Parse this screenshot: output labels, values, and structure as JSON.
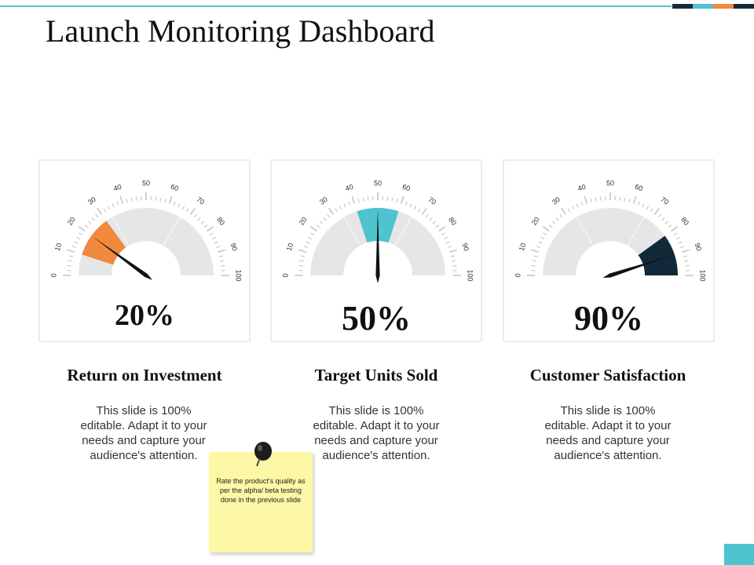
{
  "title": "Launch Monitoring Dashboard",
  "colors": {
    "accent_teal": "#4fc3cf",
    "accent_orange": "#f0883e",
    "accent_navy": "#12293a",
    "track_grey": "#e6e6e8",
    "note_yellow": "#fdf8a6"
  },
  "gauge_scale": {
    "min": 0,
    "max": 100,
    "tick_labels": [
      "0",
      "10",
      "20",
      "30",
      "40",
      "50",
      "60",
      "70",
      "80",
      "90",
      "100"
    ]
  },
  "metrics": [
    {
      "value": 20,
      "value_label": "20%",
      "title": "Return on Investment",
      "description": "This slide is 100% editable. Adapt it to your needs and capture your audience's attention.",
      "color": "#f0883e"
    },
    {
      "value": 50,
      "value_label": "50%",
      "title": "Target Units Sold",
      "description": "This slide is 100% editable. Adapt it to your needs and capture your audience's attention.",
      "color": "#4fc3cf"
    },
    {
      "value": 90,
      "value_label": "90%",
      "title": "Customer Satisfaction",
      "description": "This slide is 100% editable. Adapt it to your needs and capture your audience's attention.",
      "color": "#12293a"
    }
  ],
  "sticky_note": {
    "text": "Rate the product's quality as per the alpha/ beta testing done in the previous slide"
  }
}
